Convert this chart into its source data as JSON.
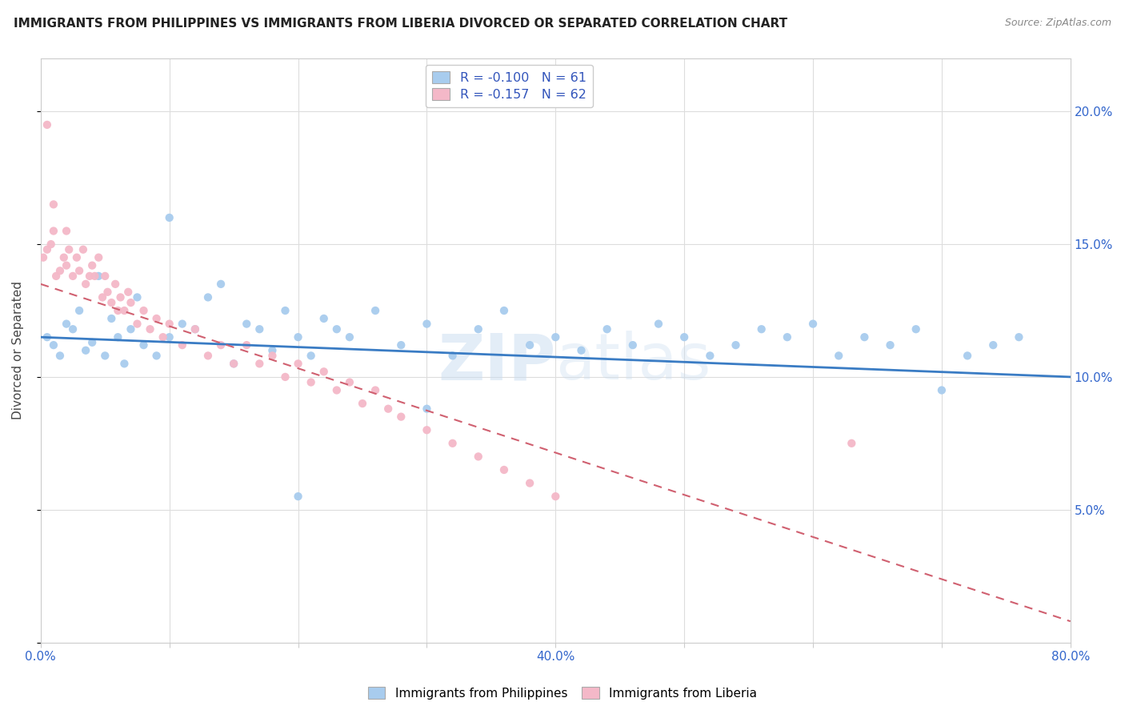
{
  "title": "IMMIGRANTS FROM PHILIPPINES VS IMMIGRANTS FROM LIBERIA DIVORCED OR SEPARATED CORRELATION CHART",
  "source": "Source: ZipAtlas.com",
  "ylabel": "Divorced or Separated",
  "watermark": "ZIPatlas",
  "xlim": [
    0.0,
    0.8
  ],
  "ylim": [
    0.0,
    0.22
  ],
  "xtick_pos": [
    0.0,
    0.1,
    0.2,
    0.3,
    0.4,
    0.5,
    0.6,
    0.7,
    0.8
  ],
  "xtick_labels": [
    "0.0%",
    "",
    "",
    "",
    "40.0%",
    "",
    "",
    "",
    "80.0%"
  ],
  "ytick_pos": [
    0.0,
    0.05,
    0.1,
    0.15,
    0.2
  ],
  "ytick_labels": [
    "",
    "5.0%",
    "10.0%",
    "15.0%",
    "20.0%"
  ],
  "blue_color": "#A8CCEE",
  "pink_color": "#F4B8C8",
  "blue_line_color": "#3A7CC4",
  "pink_line_color": "#D06070",
  "legend_R_color": "#3355BB",
  "series1_label": "Immigrants from Philippines",
  "series2_label": "Immigrants from Liberia",
  "R1": -0.1,
  "N1": 61,
  "R2": -0.157,
  "N2": 62,
  "blue_x": [
    0.005,
    0.01,
    0.015,
    0.02,
    0.025,
    0.03,
    0.035,
    0.04,
    0.045,
    0.05,
    0.055,
    0.06,
    0.065,
    0.07,
    0.075,
    0.08,
    0.09,
    0.1,
    0.11,
    0.12,
    0.13,
    0.14,
    0.15,
    0.16,
    0.17,
    0.18,
    0.19,
    0.2,
    0.21,
    0.22,
    0.23,
    0.24,
    0.26,
    0.28,
    0.3,
    0.32,
    0.34,
    0.36,
    0.38,
    0.4,
    0.42,
    0.44,
    0.46,
    0.48,
    0.5,
    0.52,
    0.54,
    0.56,
    0.58,
    0.6,
    0.62,
    0.64,
    0.66,
    0.68,
    0.7,
    0.72,
    0.74,
    0.76,
    0.1,
    0.2,
    0.3
  ],
  "blue_y": [
    0.115,
    0.112,
    0.108,
    0.12,
    0.118,
    0.125,
    0.11,
    0.113,
    0.138,
    0.108,
    0.122,
    0.115,
    0.105,
    0.118,
    0.13,
    0.112,
    0.108,
    0.115,
    0.12,
    0.118,
    0.13,
    0.135,
    0.105,
    0.12,
    0.118,
    0.11,
    0.125,
    0.115,
    0.108,
    0.122,
    0.118,
    0.115,
    0.125,
    0.112,
    0.12,
    0.108,
    0.118,
    0.125,
    0.112,
    0.115,
    0.11,
    0.118,
    0.112,
    0.12,
    0.115,
    0.108,
    0.112,
    0.118,
    0.115,
    0.12,
    0.108,
    0.115,
    0.112,
    0.118,
    0.095,
    0.108,
    0.112,
    0.115,
    0.16,
    0.055,
    0.088
  ],
  "pink_x": [
    0.002,
    0.005,
    0.008,
    0.01,
    0.012,
    0.015,
    0.018,
    0.02,
    0.022,
    0.025,
    0.028,
    0.03,
    0.033,
    0.035,
    0.038,
    0.04,
    0.042,
    0.045,
    0.048,
    0.05,
    0.052,
    0.055,
    0.058,
    0.06,
    0.062,
    0.065,
    0.068,
    0.07,
    0.075,
    0.08,
    0.085,
    0.09,
    0.095,
    0.1,
    0.11,
    0.12,
    0.13,
    0.14,
    0.15,
    0.16,
    0.17,
    0.18,
    0.19,
    0.2,
    0.21,
    0.22,
    0.23,
    0.24,
    0.25,
    0.26,
    0.27,
    0.28,
    0.3,
    0.32,
    0.34,
    0.36,
    0.38,
    0.4,
    0.005,
    0.01,
    0.02,
    0.63
  ],
  "pink_y": [
    0.145,
    0.148,
    0.15,
    0.155,
    0.138,
    0.14,
    0.145,
    0.142,
    0.148,
    0.138,
    0.145,
    0.14,
    0.148,
    0.135,
    0.138,
    0.142,
    0.138,
    0.145,
    0.13,
    0.138,
    0.132,
    0.128,
    0.135,
    0.125,
    0.13,
    0.125,
    0.132,
    0.128,
    0.12,
    0.125,
    0.118,
    0.122,
    0.115,
    0.12,
    0.112,
    0.118,
    0.108,
    0.112,
    0.105,
    0.112,
    0.105,
    0.108,
    0.1,
    0.105,
    0.098,
    0.102,
    0.095,
    0.098,
    0.09,
    0.095,
    0.088,
    0.085,
    0.08,
    0.075,
    0.07,
    0.065,
    0.06,
    0.055,
    0.195,
    0.165,
    0.155,
    0.075
  ]
}
